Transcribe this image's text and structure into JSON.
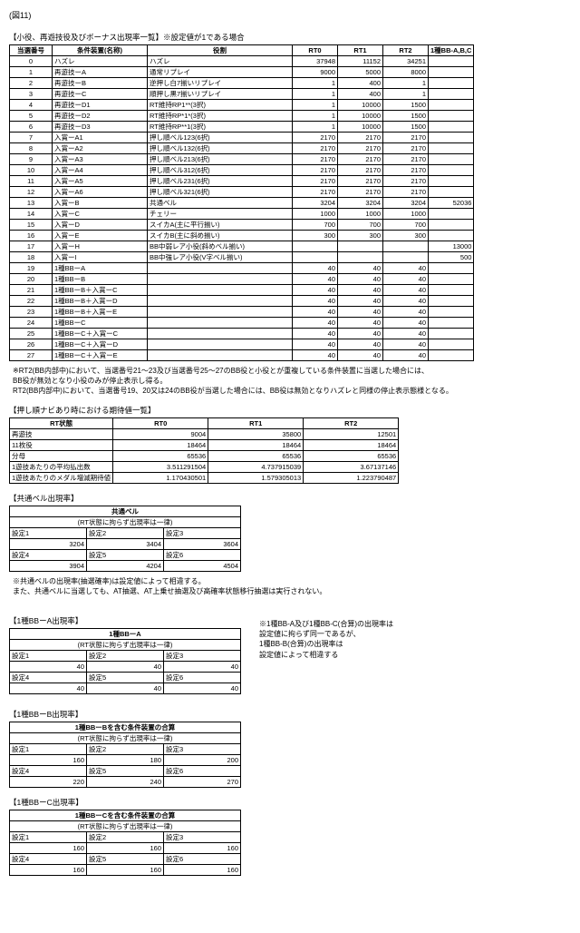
{
  "figure_label": "(図11)",
  "main_title": "【小役、再遊技役及びボーナス出現率一覧】※設定値が1である場合",
  "main_headers": [
    "当選番号",
    "条件装置(名称)",
    "役割",
    "RT0",
    "RT1",
    "RT2",
    "1種BB-A,B,C"
  ],
  "main_rows": [
    [
      "0",
      "ハズレ",
      "ハズレ",
      "37948",
      "11152",
      "34251",
      ""
    ],
    [
      "1",
      "再遊技ーA",
      "通常リプレイ",
      "9000",
      "5000",
      "8000",
      ""
    ],
    [
      "2",
      "再遊技ーB",
      "逆押し白7揃いリプレイ",
      "1",
      "400",
      "1",
      ""
    ],
    [
      "3",
      "再遊技ーC",
      "順押し黒7揃いリプレイ",
      "1",
      "400",
      "1",
      ""
    ],
    [
      "4",
      "再遊技ーD1",
      "RT維持RP1**(3択)",
      "1",
      "10000",
      "1500",
      ""
    ],
    [
      "5",
      "再遊技ーD2",
      "RT維持RP*1*(3択)",
      "1",
      "10000",
      "1500",
      ""
    ],
    [
      "6",
      "再遊技ーD3",
      "RT維持RP**1(3択)",
      "1",
      "10000",
      "1500",
      ""
    ],
    [
      "7",
      "入賞ーA1",
      "押し順ベル123(6択)",
      "2170",
      "2170",
      "2170",
      ""
    ],
    [
      "8",
      "入賞ーA2",
      "押し順ベル132(6択)",
      "2170",
      "2170",
      "2170",
      ""
    ],
    [
      "9",
      "入賞ーA3",
      "押し順ベル213(6択)",
      "2170",
      "2170",
      "2170",
      ""
    ],
    [
      "10",
      "入賞ーA4",
      "押し順ベル312(6択)",
      "2170",
      "2170",
      "2170",
      ""
    ],
    [
      "11",
      "入賞ーA5",
      "押し順ベル231(6択)",
      "2170",
      "2170",
      "2170",
      ""
    ],
    [
      "12",
      "入賞ーA6",
      "押し順ベル321(6択)",
      "2170",
      "2170",
      "2170",
      ""
    ],
    [
      "13",
      "入賞ーB",
      "共通ベル",
      "3204",
      "3204",
      "3204",
      "52036"
    ],
    [
      "14",
      "入賞ーC",
      "チェリー",
      "1000",
      "1000",
      "1000",
      ""
    ],
    [
      "15",
      "入賞ーD",
      "スイカA(主に平行揃い)",
      "700",
      "700",
      "700",
      ""
    ],
    [
      "16",
      "入賞ーE",
      "スイカB(主に斜め揃い)",
      "300",
      "300",
      "300",
      ""
    ],
    [
      "17",
      "入賞ーH",
      "BB中弱レア小役(斜めベル揃い)",
      "",
      "",
      "",
      "13000"
    ],
    [
      "18",
      "入賞ーI",
      "BB中強レア小役(V字ベル揃い)",
      "",
      "",
      "",
      "500"
    ],
    [
      "19",
      "1種BBーA",
      "",
      "40",
      "40",
      "40",
      ""
    ],
    [
      "20",
      "1種BBーB",
      "",
      "40",
      "40",
      "40",
      ""
    ],
    [
      "21",
      "1種BBーB＋入賞ーC",
      "",
      "40",
      "40",
      "40",
      ""
    ],
    [
      "22",
      "1種BBーB＋入賞ーD",
      "",
      "40",
      "40",
      "40",
      ""
    ],
    [
      "23",
      "1種BBーB＋入賞ーE",
      "",
      "40",
      "40",
      "40",
      ""
    ],
    [
      "24",
      "1種BBーC",
      "",
      "40",
      "40",
      "40",
      ""
    ],
    [
      "25",
      "1種BBーC＋入賞ーC",
      "",
      "40",
      "40",
      "40",
      ""
    ],
    [
      "26",
      "1種BBーC＋入賞ーD",
      "",
      "40",
      "40",
      "40",
      ""
    ],
    [
      "27",
      "1種BBーC＋入賞ーE",
      "",
      "40",
      "40",
      "40",
      ""
    ]
  ],
  "main_notes": [
    "※RT2(BB内部中)において、当選番号21～23及び当選番号25～27のBB役と小役とが重複している条件装置に当選した場合には、",
    "BB役が無効となり小役のみが停止表示し得る。",
    "RT2(BB内部中)において、当選番号19、20又は24のBB役が当選した場合には、BB役は無効となりハズレと同様の停止表示態様となる。"
  ],
  "ev_title": "【押し順ナビあり時における期待値一覧】",
  "ev_headers": [
    "RT状態",
    "RT0",
    "RT1",
    "RT2"
  ],
  "ev_rows": [
    [
      "再遊技",
      "9004",
      "35800",
      "12501"
    ],
    [
      "11枚役",
      "18464",
      "18464",
      "18464"
    ],
    [
      "分母",
      "65536",
      "65536",
      "65536"
    ],
    [
      "1遊技あたりの平均払出数",
      "3.511291504",
      "4.737915039",
      "3.67137146"
    ],
    [
      "1遊技あたりのメダル増減期待値",
      "1.170430501",
      "1.579305013",
      "1.223790487"
    ]
  ],
  "bell_title": "【共通ベル出現率】",
  "bell_table_title": "共通ベル",
  "bell_subtitle": "(RT状態に拘らず出現率は一律)",
  "s_labels": [
    "設定1",
    "設定2",
    "設定3",
    "設定4",
    "設定5",
    "設定6"
  ],
  "bell_vals": [
    "3204",
    "3404",
    "3604",
    "3904",
    "4204",
    "4504"
  ],
  "bell_notes": [
    "※共通ベルの出現率(抽選確率)は設定値によって相違する。",
    "また、共通ベルに当選しても、AT抽選、AT上乗せ抽選及び高確率状態移行抽選は実行されない。"
  ],
  "ba_title": "【1種BBーA出現率】",
  "ba_table_title": "1種BBーA",
  "ba_subtitle": "(RT状態に拘らず出現率は一律)",
  "ba_vals": [
    "40",
    "40",
    "40",
    "40",
    "40",
    "40"
  ],
  "side_note_lines": [
    "※1種BB-A及び1種BB-C(合算)の出現率は",
    "設定値に拘らず同一であるが、",
    "1種BB-B(合算)の出現率は",
    "設定値によって相違する"
  ],
  "bb_title": "【1種BBーB出現率】",
  "bb_table_title": "1種BBーBを含む条件装置の合算",
  "bb_subtitle": "(RT状態に拘らず出現率は一律)",
  "bb_vals": [
    "160",
    "180",
    "200",
    "220",
    "240",
    "270"
  ],
  "bc_title": "【1種BBーC出現率】",
  "bc_table_title": "1種BBーCを含む条件装置の合算",
  "bc_subtitle": "(RT状態に拘らず出現率は一律)",
  "bc_vals": [
    "160",
    "160",
    "160",
    "160",
    "160",
    "160"
  ]
}
